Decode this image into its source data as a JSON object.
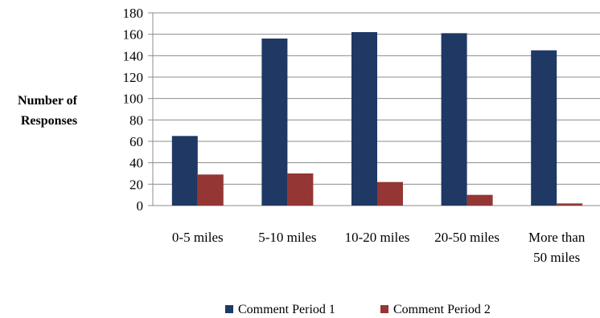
{
  "chart_data": {
    "type": "bar",
    "title": "",
    "xlabel": "",
    "ylabel": "Number of Responses",
    "ylabel_lines": [
      "Number of",
      "Responses"
    ],
    "categories": [
      "0-5 miles",
      "5-10 miles",
      "10-20 miles",
      "20-50 miles",
      "More than 50 miles"
    ],
    "category_label_lines": [
      [
        "0-5 miles"
      ],
      [
        "5-10 miles"
      ],
      [
        "10-20 miles"
      ],
      [
        "20-50 miles"
      ],
      [
        "More than",
        "50 miles"
      ]
    ],
    "series": [
      {
        "name": "Comment Period 1",
        "color": "#1f3864",
        "values": [
          65,
          156,
          162,
          161,
          145
        ]
      },
      {
        "name": "Comment Period 2",
        "color": "#943634",
        "values": [
          29,
          30,
          22,
          10,
          2
        ]
      }
    ],
    "ylim": [
      0,
      180
    ],
    "yticks": [
      0,
      20,
      40,
      60,
      80,
      100,
      120,
      140,
      160,
      180
    ],
    "grid": true,
    "legend_position": "bottom"
  }
}
